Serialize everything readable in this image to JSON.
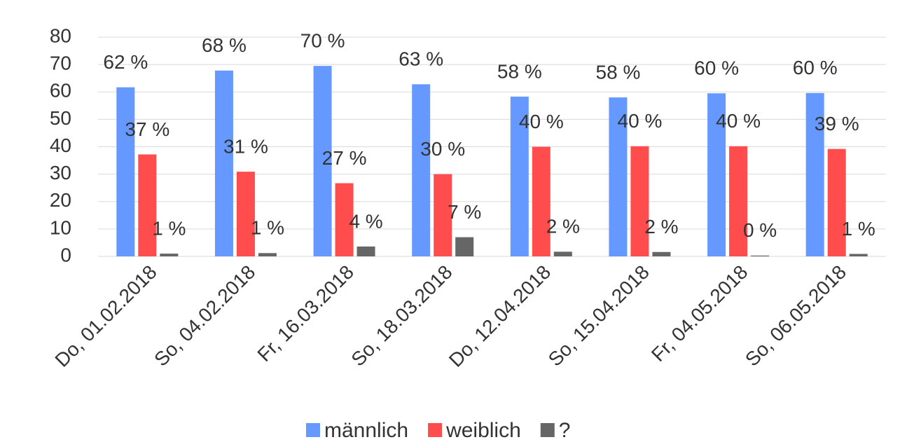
{
  "chart_data": {
    "type": "bar",
    "categories": [
      "Do, 01.02.2018",
      "So, 04.02.2018",
      "Fr, 16.03.2018",
      "So, 18.03.2018",
      "Do, 12.04.2018",
      "So, 15.04.2018",
      "Fr, 04.05.2018",
      "So, 06.05.2018"
    ],
    "series": [
      {
        "name": "männlich",
        "color": "#6699ff",
        "values": [
          61.7,
          67.8,
          69.5,
          62.8,
          58.3,
          58.0,
          59.5,
          59.6
        ],
        "value_labels": [
          "62 %",
          "68 %",
          "70 %",
          "63 %",
          "58 %",
          "58 %",
          "60 %",
          "60 %"
        ]
      },
      {
        "name": "weiblich",
        "color": "#ff4d4d",
        "values": [
          37.2,
          30.9,
          26.7,
          30.0,
          40.0,
          40.2,
          40.2,
          39.2
        ],
        "value_labels": [
          "37 %",
          "31 %",
          "27 %",
          "30 %",
          "40 %",
          "40 %",
          "40 %",
          "39 %"
        ]
      },
      {
        "name": "?",
        "color": "#666666",
        "values": [
          1.0,
          1.2,
          3.6,
          7.0,
          1.7,
          1.6,
          0.3,
          0.9
        ],
        "value_labels": [
          "1 %",
          "1 %",
          "4 %",
          "7 %",
          "2 %",
          "2 %",
          "0 %",
          "1 %"
        ]
      }
    ],
    "ylim": [
      0,
      80
    ],
    "yticks": [
      0,
      10,
      20,
      30,
      40,
      50,
      60,
      70,
      80
    ],
    "grid": true,
    "legend": "bottom"
  }
}
